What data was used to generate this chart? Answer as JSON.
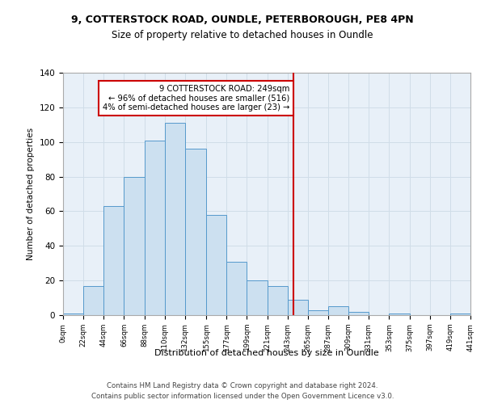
{
  "title1": "9, COTTERSTOCK ROAD, OUNDLE, PETERBOROUGH, PE8 4PN",
  "title2": "Size of property relative to detached houses in Oundle",
  "xlabel": "Distribution of detached houses by size in Oundle",
  "ylabel": "Number of detached properties",
  "footer1": "Contains HM Land Registry data © Crown copyright and database right 2024.",
  "footer2": "Contains public sector information licensed under the Open Government Licence v3.0.",
  "bin_edges": [
    0,
    22,
    44,
    66,
    88,
    110,
    132,
    155,
    177,
    199,
    221,
    243,
    265,
    287,
    309,
    331,
    353,
    375,
    397,
    419,
    441
  ],
  "bar_heights": [
    1,
    17,
    63,
    80,
    101,
    111,
    96,
    58,
    31,
    20,
    17,
    9,
    3,
    5,
    2,
    0,
    1,
    0,
    0,
    1
  ],
  "bar_color": "#cce0f0",
  "bar_edge_color": "#5599cc",
  "grid_color": "#d0dde8",
  "vline_x": 249,
  "vline_color": "#cc0000",
  "annotation_text": "9 COTTERSTOCK ROAD: 249sqm\n← 96% of detached houses are smaller (516)\n4% of semi-detached houses are larger (23) →",
  "annotation_box_color": "#cc0000",
  "annotation_text_color": "#000000",
  "annotation_bg_color": "#ffffff",
  "tick_labels": [
    "0sqm",
    "22sqm",
    "44sqm",
    "66sqm",
    "88sqm",
    "110sqm",
    "132sqm",
    "155sqm",
    "177sqm",
    "199sqm",
    "221sqm",
    "243sqm",
    "265sqm",
    "287sqm",
    "309sqm",
    "331sqm",
    "353sqm",
    "375sqm",
    "397sqm",
    "419sqm",
    "441sqm"
  ],
  "ylim": [
    0,
    140
  ],
  "xlim": [
    0,
    441
  ],
  "yticks": [
    0,
    20,
    40,
    60,
    80,
    100,
    120,
    140
  ],
  "bg_color": "#ffffff",
  "plot_bg_color": "#e8f0f8"
}
